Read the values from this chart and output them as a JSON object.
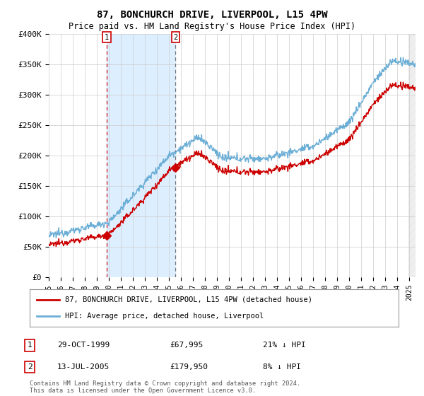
{
  "title": "87, BONCHURCH DRIVE, LIVERPOOL, L15 4PW",
  "subtitle": "Price paid vs. HM Land Registry's House Price Index (HPI)",
  "ylim": [
    0,
    400000
  ],
  "yticks": [
    0,
    50000,
    100000,
    150000,
    200000,
    250000,
    300000,
    350000,
    400000
  ],
  "ytick_labels": [
    "£0",
    "£50K",
    "£100K",
    "£150K",
    "£200K",
    "£250K",
    "£300K",
    "£350K",
    "£400K"
  ],
  "hpi_color": "#6baed6",
  "price_color": "#cc0000",
  "shade_color": "#ddeeff",
  "legend_label_price": "87, BONCHURCH DRIVE, LIVERPOOL, L15 4PW (detached house)",
  "legend_label_hpi": "HPI: Average price, detached house, Liverpool",
  "purchase1_date": "29-OCT-1999",
  "purchase1_price": 67995,
  "purchase1_note": "21% ↓ HPI",
  "purchase1_x": 1999.83,
  "purchase2_date": "13-JUL-2005",
  "purchase2_price": 179950,
  "purchase2_note": "8% ↓ HPI",
  "purchase2_x": 2005.54,
  "footnote": "Contains HM Land Registry data © Crown copyright and database right 2024.\nThis data is licensed under the Open Government Licence v3.0.",
  "background_color": "#ffffff",
  "grid_color": "#cccccc",
  "xmin": 1995,
  "xmax": 2025.5
}
